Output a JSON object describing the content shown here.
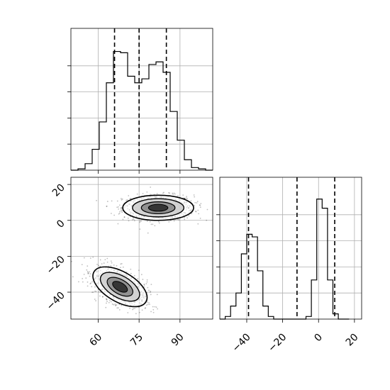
{
  "chart_data": [
    {
      "panel": "marginal-top-left",
      "type": "histogram",
      "variable_index": 0,
      "xlim": [
        50,
        102
      ],
      "ylim": [
        0,
        1.0
      ],
      "bins": {
        "start": 50,
        "width": 2.6
      },
      "counts": [
        0,
        0.01,
        0.05,
        0.16,
        0.37,
        0.67,
        0.91,
        0.9,
        0.72,
        0.67,
        0.7,
        0.81,
        0.83,
        0.75,
        0.45,
        0.23,
        0.08,
        0.02,
        0.01,
        0
      ],
      "quantile_lines": [
        66,
        75,
        85
      ],
      "grid": true,
      "show_x_tick_labels": false,
      "show_y_tick_labels": false
    },
    {
      "panel": "joint-bottom-left",
      "type": "scatter-contour",
      "xlim": [
        50,
        102
      ],
      "ylim": [
        -55,
        24
      ],
      "xticks": [
        60,
        75,
        90
      ],
      "xtick_labels": [
        "60",
        "75",
        "90"
      ],
      "yticks": [
        20,
        0,
        -20,
        -40
      ],
      "ytick_labels": [
        "20",
        "0",
        "−20",
        "−40"
      ],
      "clusters": [
        {
          "center": [
            82,
            7
          ],
          "spread": [
            6.5,
            3.5
          ],
          "rotation_deg": 0
        },
        {
          "center": [
            68,
            -37
          ],
          "spread": [
            5.5,
            4.2
          ],
          "rotation_deg": -30
        }
      ],
      "grid": true
    },
    {
      "panel": "marginal-bottom-right",
      "type": "histogram",
      "variable_index": 1,
      "xlim": [
        -55,
        24
      ],
      "ylim": [
        0,
        1.0
      ],
      "bins": {
        "start": -55,
        "width": 3.0
      },
      "counts": [
        0,
        0.02,
        0.1,
        0.2,
        0.5,
        0.65,
        0.63,
        0.37,
        0.1,
        0.02,
        0,
        0,
        0,
        0,
        0,
        0,
        0.02,
        0.3,
        0.92,
        0.85,
        0.3,
        0.04,
        0,
        0
      ],
      "quantile_lines": [
        -39,
        -12,
        9
      ],
      "xticks": [
        -40,
        -20,
        0,
        20
      ],
      "xtick_labels": [
        "−40",
        "−20",
        "0",
        "20"
      ],
      "grid": true,
      "show_y_tick_labels": false
    }
  ]
}
